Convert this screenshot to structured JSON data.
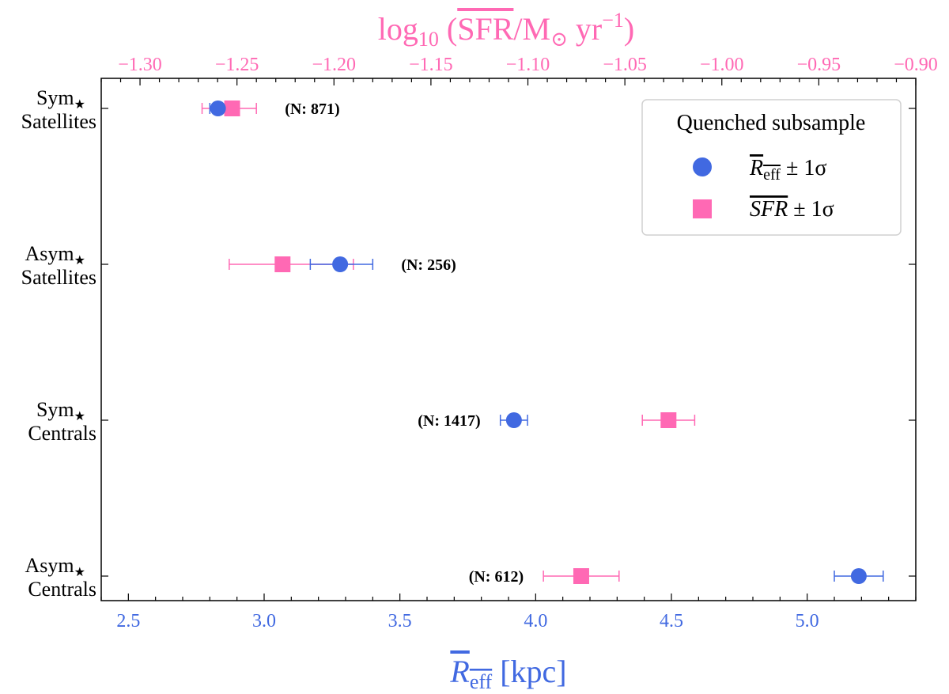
{
  "chart_data": {
    "type": "scatter",
    "title": "",
    "categories": [
      {
        "line1": "Sym",
        "line2": "Satellites"
      },
      {
        "line1": "Asym",
        "line2": "Satellites"
      },
      {
        "line1": "Sym",
        "line2": "Centrals"
      },
      {
        "line1": "Asym",
        "line2": "Centrals"
      }
    ],
    "category_star": "★",
    "x_bottom": {
      "label_main": "R",
      "label_sub": "eff",
      "label_unit": " [kpc]",
      "range": [
        2.4,
        5.4
      ],
      "ticks": [
        "2.5",
        "3.0",
        "3.5",
        "4.0",
        "4.5",
        "5.0"
      ],
      "color": "#4169e1"
    },
    "x_top": {
      "label_prefix": "log",
      "label_prefix_sub": "10",
      "label_open": " (",
      "label_overline": "SFR",
      "label_mid": "/M",
      "label_sun": "⊙",
      "label_yr": " yr",
      "label_exp": "−1",
      "label_close": ")",
      "range": [
        -1.32,
        -0.9
      ],
      "ticks": [
        "−1.30",
        "−1.25",
        "−1.20",
        "−1.15",
        "−1.10",
        "−1.05",
        "−1.00",
        "−0.95",
        "−0.90"
      ],
      "color": "#ff69b4"
    },
    "series": [
      {
        "name": "Reff ± 1σ",
        "axis": "bottom",
        "marker": "circle",
        "color": "#4169e1",
        "values": [
          2.83,
          3.28,
          3.92,
          5.19
        ],
        "err_low": [
          0.03,
          0.11,
          0.05,
          0.09
        ],
        "err_high": [
          0.06,
          0.12,
          0.05,
          0.09
        ]
      },
      {
        "name": "SFR ± 1σ",
        "axis": "top",
        "marker": "square",
        "color": "#ff69b4",
        "values": [
          -1.2525,
          -1.2265,
          -1.0275,
          -1.0725
        ],
        "err_low": [
          0.0155,
          0.0275,
          0.0135,
          0.0195
        ],
        "err_high": [
          0.0125,
          0.0365,
          0.0135,
          0.0195
        ]
      }
    ],
    "counts": [
      "(N: 871)",
      "(N: 256)",
      "(N: 1417)",
      "(N: 612)"
    ],
    "legend": {
      "title": "Quenched subsample",
      "position": "top-right",
      "entries": [
        {
          "main": "R",
          "sub": "eff",
          "suffix": " ± 1σ"
        },
        {
          "main": "SFR",
          "sub": "",
          "suffix": " ± 1σ"
        }
      ]
    },
    "grid": false
  }
}
